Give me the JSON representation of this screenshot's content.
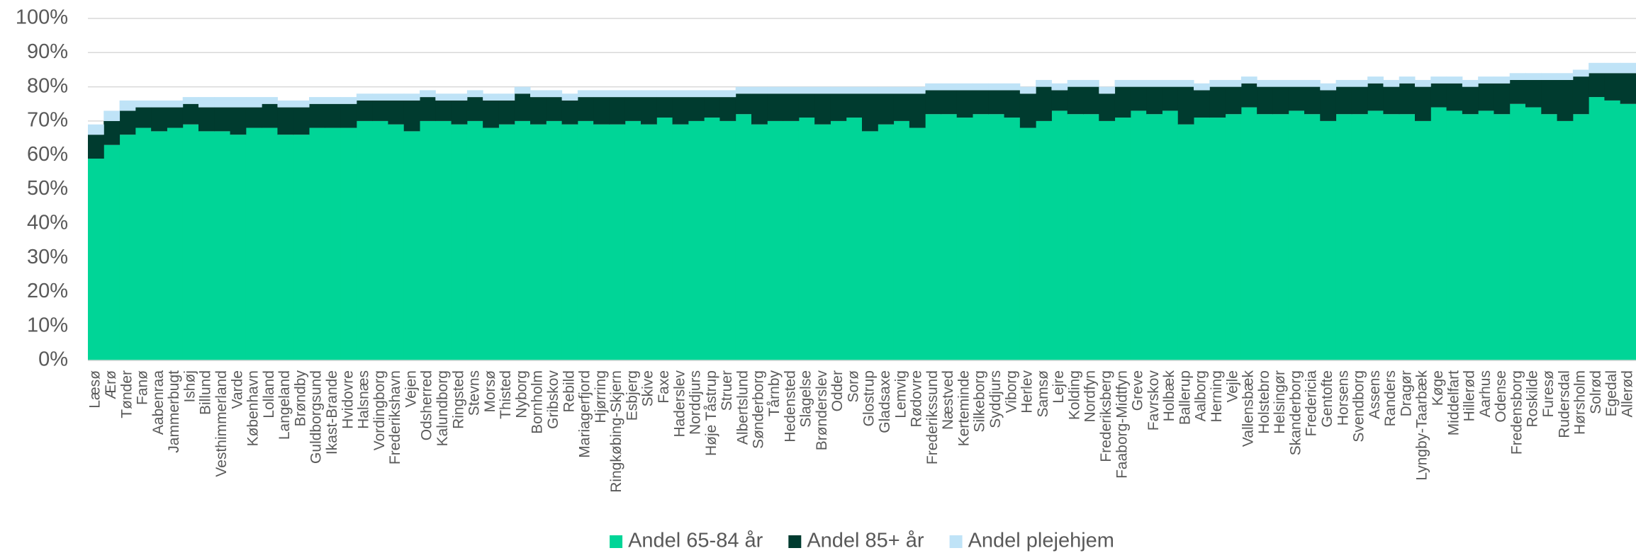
{
  "chart_data": {
    "type": "stacked_bar",
    "categories": [
      "Læsø",
      "Ærø",
      "Tønder",
      "Fanø",
      "Aabenraa",
      "Jammerbugt",
      "Ishøj",
      "Billund",
      "Vesthimmerland",
      "Varde",
      "København",
      "Lolland",
      "Langeland",
      "Brøndby",
      "Guldborgsund",
      "Ikast-Brande",
      "Hvidovre",
      "Halsnæs",
      "Vordingborg",
      "Frederikshavn",
      "Vejen",
      "Odsherred",
      "Kalundborg",
      "Ringsted",
      "Stevns",
      "Morsø",
      "Thisted",
      "Nyborg",
      "Bornholm",
      "Gribskov",
      "Rebild",
      "Mariagerfjord",
      "Hjørring",
      "Ringkøbing-Skjern",
      "Esbjerg",
      "Skive",
      "Faxe",
      "Haderslev",
      "Norddjurs",
      "Høje Tåstrup",
      "Struer",
      "Albertslund",
      "Sønderborg",
      "Tårnby",
      "Hedensted",
      "Slagelse",
      "Brønderslev",
      "Odder",
      "Sorø",
      "Glostrup",
      "Gladsaxe",
      "Lemvig",
      "Rødovre",
      "Frederikssund",
      "Næstved",
      "Kerteminde",
      "Silkeborg",
      "Syddjurs",
      "Viborg",
      "Herlev",
      "Samsø",
      "Lejre",
      "Kolding",
      "Nordfyn",
      "Frederiksberg",
      "Faaborg-Midtfyn",
      "Greve",
      "Favrskov",
      "Holbæk",
      "Ballerup",
      "Aalborg",
      "Herning",
      "Vejle",
      "Vallensbæk",
      "Holstebro",
      "Helsingør",
      "Skanderborg",
      "Fredericia",
      "Gentofte",
      "Horsens",
      "Svendborg",
      "Assens",
      "Randers",
      "Dragør",
      "Lyngby-Taarbæk",
      "Køge",
      "Middelfart",
      "Hillerød",
      "Aarhus",
      "Odense",
      "Fredensborg",
      "Roskilde",
      "Furesø",
      "Rudersdal",
      "Hørsholm",
      "Solrød",
      "Egedal",
      "Allerød"
    ],
    "series": [
      {
        "name": "Andel 65-84 år",
        "color": "#00d597",
        "values": [
          59,
          63,
          66,
          68,
          67,
          68,
          69,
          67,
          67,
          66,
          68,
          68,
          66,
          66,
          68,
          68,
          68,
          70,
          70,
          69,
          67,
          70,
          70,
          69,
          70,
          68,
          69,
          70,
          69,
          70,
          69,
          70,
          69,
          69,
          70,
          69,
          71,
          69,
          70,
          71,
          70,
          72,
          69,
          70,
          70,
          71,
          69,
          70,
          71,
          67,
          69,
          70,
          68,
          72,
          72,
          71,
          72,
          72,
          71,
          68,
          70,
          73,
          72,
          72,
          70,
          71,
          73,
          72,
          73,
          69,
          71,
          71,
          72,
          74,
          72,
          72,
          73,
          72,
          70,
          72,
          72,
          73,
          72,
          72,
          70,
          74,
          73,
          72,
          73,
          72,
          75,
          74,
          72,
          70,
          72,
          77,
          76,
          75
        ]
      },
      {
        "name": "Andel 85+ år",
        "color": "#003b2f",
        "values": [
          7,
          7,
          7,
          6,
          7,
          6,
          6,
          7,
          7,
          8,
          6,
          7,
          8,
          8,
          7,
          7,
          7,
          6,
          6,
          7,
          9,
          7,
          6,
          7,
          7,
          8,
          7,
          8,
          8,
          7,
          7,
          7,
          8,
          8,
          7,
          8,
          6,
          8,
          7,
          6,
          7,
          6,
          9,
          8,
          8,
          7,
          9,
          8,
          7,
          11,
          9,
          8,
          10,
          7,
          7,
          8,
          7,
          7,
          8,
          10,
          10,
          6,
          8,
          8,
          8,
          9,
          7,
          8,
          7,
          11,
          8,
          9,
          8,
          7,
          8,
          8,
          7,
          8,
          9,
          8,
          8,
          8,
          8,
          9,
          10,
          7,
          8,
          8,
          8,
          9,
          7,
          8,
          10,
          12,
          11,
          7,
          8,
          9
        ]
      },
      {
        "name": "Andel plejehjem",
        "color": "#bfe3f7",
        "values": [
          3,
          3,
          3,
          2,
          2,
          2,
          2,
          3,
          3,
          3,
          3,
          2,
          2,
          2,
          2,
          2,
          2,
          2,
          2,
          2,
          2,
          2,
          2,
          2,
          2,
          2,
          2,
          2,
          2,
          2,
          2,
          2,
          2,
          2,
          2,
          2,
          2,
          2,
          2,
          2,
          2,
          2,
          2,
          2,
          2,
          2,
          2,
          2,
          2,
          2,
          2,
          2,
          2,
          2,
          2,
          2,
          2,
          2,
          2,
          2,
          2,
          2,
          2,
          2,
          2,
          2,
          2,
          2,
          2,
          2,
          2,
          2,
          2,
          2,
          2,
          2,
          2,
          2,
          2,
          2,
          2,
          2,
          2,
          2,
          2,
          2,
          2,
          2,
          2,
          2,
          2,
          2,
          2,
          2,
          2,
          3,
          3,
          3
        ]
      }
    ],
    "ylim": [
      0,
      100
    ],
    "yticks": [
      {
        "value": 0,
        "label": "0%"
      },
      {
        "value": 10,
        "label": "10%"
      },
      {
        "value": 20,
        "label": "20%"
      },
      {
        "value": 30,
        "label": "30%"
      },
      {
        "value": 40,
        "label": "40%"
      },
      {
        "value": 50,
        "label": "50%"
      },
      {
        "value": 60,
        "label": "60%"
      },
      {
        "value": 70,
        "label": "70%"
      },
      {
        "value": 80,
        "label": "80%"
      },
      {
        "value": 90,
        "label": "90%"
      },
      {
        "value": 100,
        "label": "100%"
      }
    ],
    "grid": true,
    "legend": "bottom"
  }
}
